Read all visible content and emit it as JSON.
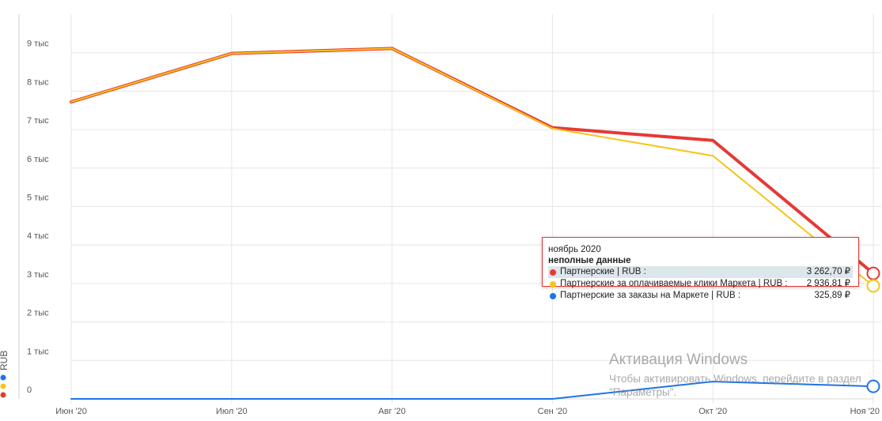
{
  "chart_data": {
    "type": "line",
    "categories": [
      "Июн '20",
      "Июл '20",
      "Авг '20",
      "Сен '20",
      "Окт '20",
      "Ноя '20"
    ],
    "y_ticks": [
      "0",
      "1 тыс",
      "2 тыс",
      "3 тыс",
      "4 тыс",
      "5 тыс",
      "6 тыс",
      "7 тыс",
      "8 тыс",
      "9 тыс"
    ],
    "ylim": [
      0,
      10000
    ],
    "ylabel": "RUB",
    "grid": true,
    "series": [
      {
        "name": "Партнерские | RUB",
        "color": "#e53935",
        "values": [
          7720,
          8980,
          9110,
          7050,
          6720,
          3262.7
        ]
      },
      {
        "name": "Партнерские за оплачиваемые клики Маркета | RUB",
        "color": "#f5c518",
        "values": [
          7720,
          8980,
          9110,
          7030,
          6320,
          2936.81
        ]
      },
      {
        "name": "Партнерские за заказы на Маркете | RUB",
        "color": "#1e73e8",
        "values": [
          0,
          0,
          0,
          0,
          450,
          325.89
        ]
      }
    ]
  },
  "tooltip": {
    "title": "ноябрь 2020",
    "subtitle": "неполные данные",
    "rows": [
      {
        "label": "Партнерские | RUB :",
        "value": "3 262,70 ₽",
        "color": "#e53935"
      },
      {
        "label": "Партнерские за оплачиваемые клики Маркета | RUB :",
        "value": "2 936,81 ₽",
        "color": "#f5c518"
      },
      {
        "label": "Партнерские за заказы на Маркете | RUB :",
        "value": "325,89 ₽",
        "color": "#1e73e8"
      }
    ]
  },
  "watermark": {
    "title": "Активация Windows",
    "text": "Чтобы активировать Windows, перейдите в раздел \"Параметры\"."
  }
}
